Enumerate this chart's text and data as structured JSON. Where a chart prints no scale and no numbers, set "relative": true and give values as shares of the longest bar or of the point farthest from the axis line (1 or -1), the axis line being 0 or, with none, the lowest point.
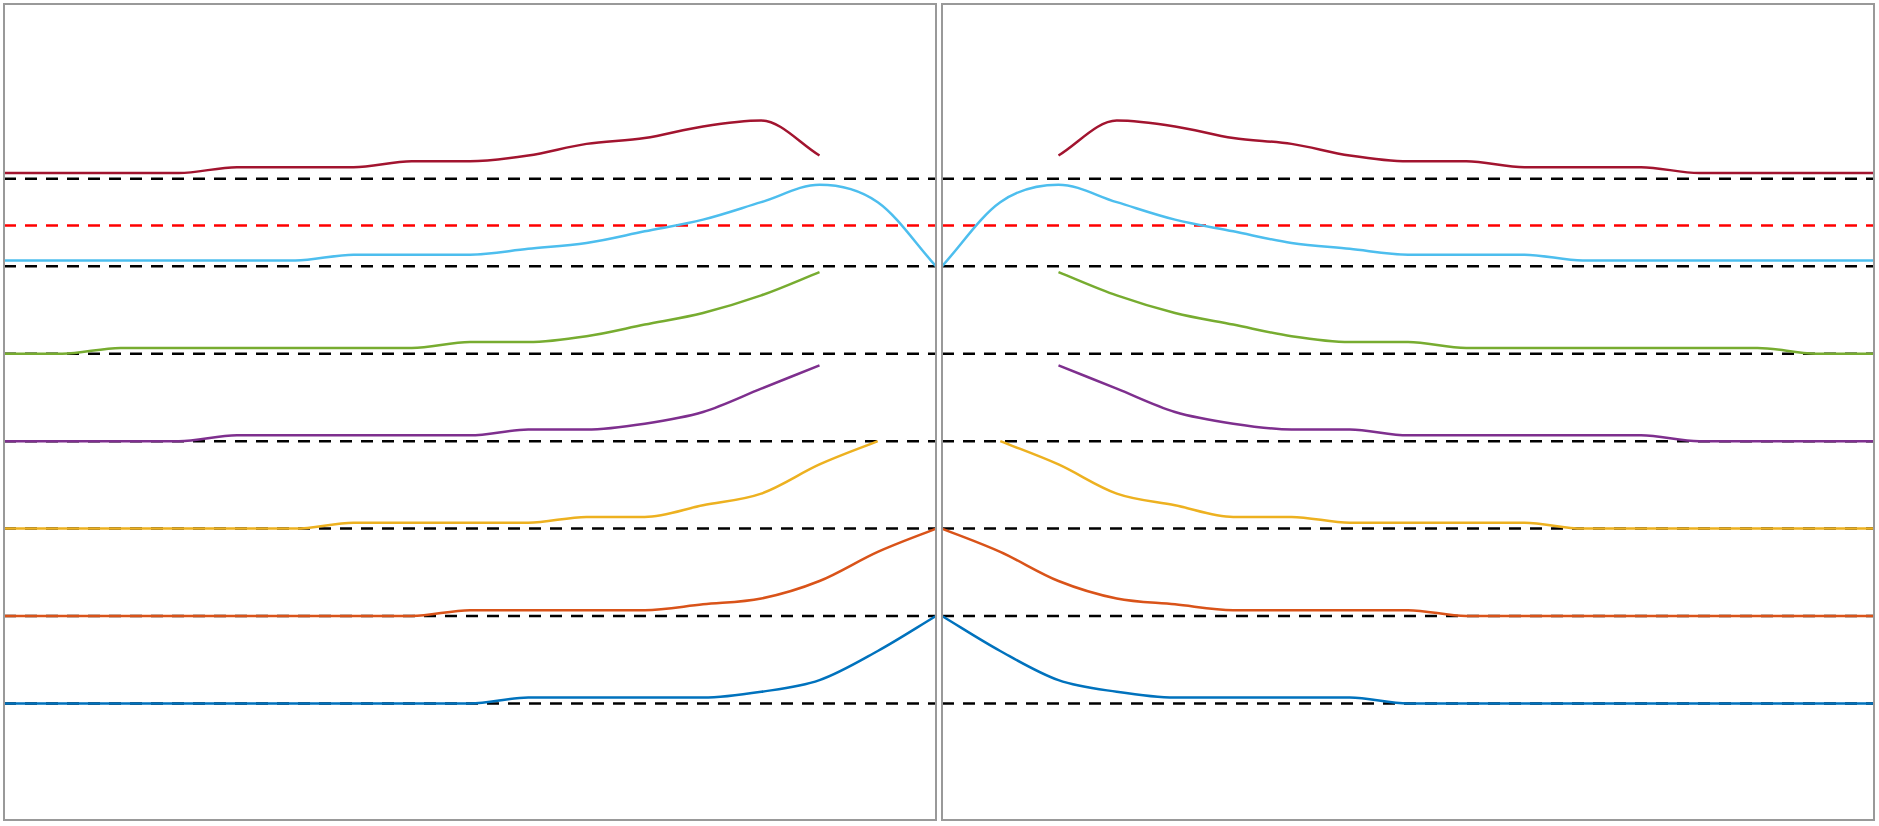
{
  "chart_data": [
    {
      "type": "line",
      "relative": true,
      "marker": "none",
      "line_style": "solid",
      "categories": [
        null,
        null,
        null,
        null,
        null,
        null,
        null,
        null,
        null,
        null,
        null,
        null,
        null,
        null,
        null,
        null,
        null
      ],
      "series": [
        {
          "color": "#0072bd",
          "values": [
            0,
            0,
            0,
            0,
            0,
            0,
            0,
            0,
            0,
            0.01,
            0.01,
            0.01,
            0.01,
            0.02,
            0.04,
            0.09,
            0.15
          ]
        },
        {
          "color": "#d95319",
          "values": [
            0.15,
            0.15,
            0.15,
            0.15,
            0.15,
            0.15,
            0.15,
            0.15,
            0.16,
            0.16,
            0.16,
            0.16,
            0.17,
            0.18,
            0.21,
            0.26,
            0.3
          ]
        },
        {
          "color": "#edb120",
          "values": [
            0.3,
            0.3,
            0.3,
            0.3,
            0.3,
            0.3,
            0.31,
            0.31,
            0.31,
            0.31,
            0.32,
            0.32,
            0.34,
            0.36,
            0.41,
            0.45,
            null
          ]
        },
        {
          "color": "#7e2f8e",
          "values": [
            0.45,
            0.45,
            0.45,
            0.45,
            0.46,
            0.46,
            0.46,
            0.46,
            0.46,
            0.47,
            0.47,
            0.48,
            0.5,
            0.54,
            0.58,
            null,
            null
          ]
        },
        {
          "color": "#77ac30",
          "values": [
            0.6,
            0.6,
            0.61,
            0.61,
            0.61,
            0.61,
            0.61,
            0.61,
            0.62,
            0.62,
            0.63,
            0.65,
            0.67,
            0.7,
            0.74,
            null,
            null
          ]
        },
        {
          "color": "#4dbeee",
          "values": [
            0.76,
            0.76,
            0.76,
            0.76,
            0.76,
            0.76,
            0.77,
            0.77,
            0.77,
            0.78,
            0.79,
            0.81,
            0.83,
            0.86,
            0.89,
            0.86,
            0.75
          ]
        },
        {
          "color": "#a2142f",
          "values": [
            0.91,
            0.91,
            0.91,
            0.91,
            0.92,
            0.92,
            0.92,
            0.93,
            0.93,
            0.94,
            0.96,
            0.97,
            0.99,
            1.0,
            0.94,
            null,
            null
          ]
        }
      ],
      "ref_lines": [
        {
          "axis": "y",
          "value": 0,
          "color": "#000000",
          "line_style": "dashed"
        },
        {
          "axis": "y",
          "value": 0.15,
          "color": "#000000",
          "line_style": "dashed"
        },
        {
          "axis": "y",
          "value": 0.3,
          "color": "#000000",
          "line_style": "dashed"
        },
        {
          "axis": "y",
          "value": 0.45,
          "color": "#000000",
          "line_style": "dashed"
        },
        {
          "axis": "y",
          "value": 0.6,
          "color": "#000000",
          "line_style": "dashed"
        },
        {
          "axis": "y",
          "value": 0.75,
          "color": "#000000",
          "line_style": "dashed"
        },
        {
          "axis": "y",
          "value": 0.9,
          "color": "#000000",
          "line_style": "dashed"
        },
        {
          "axis": "y",
          "value": 0.82,
          "color": "#ff0000",
          "line_style": "dashed"
        }
      ]
    },
    {
      "type": "line",
      "relative": true,
      "marker": "none",
      "line_style": "solid",
      "categories": [
        null,
        null,
        null,
        null,
        null,
        null,
        null,
        null,
        null,
        null,
        null,
        null,
        null,
        null,
        null,
        null,
        null
      ],
      "series": [
        {
          "color": "#0072bd",
          "values": [
            0.15,
            0.09,
            0.04,
            0.02,
            0.01,
            0.01,
            0.01,
            0.01,
            0,
            0,
            0,
            0,
            0,
            0,
            0,
            0,
            0
          ]
        },
        {
          "color": "#d95319",
          "values": [
            0.3,
            0.26,
            0.21,
            0.18,
            0.17,
            0.16,
            0.16,
            0.16,
            0.16,
            0.15,
            0.15,
            0.15,
            0.15,
            0.15,
            0.15,
            0.15,
            0.15
          ]
        },
        {
          "color": "#edb120",
          "values": [
            null,
            0.45,
            0.41,
            0.36,
            0.34,
            0.32,
            0.32,
            0.31,
            0.31,
            0.31,
            0.31,
            0.3,
            0.3,
            0.3,
            0.3,
            0.3,
            0.3
          ]
        },
        {
          "color": "#7e2f8e",
          "values": [
            null,
            null,
            0.58,
            0.54,
            0.5,
            0.48,
            0.47,
            0.47,
            0.46,
            0.46,
            0.46,
            0.46,
            0.46,
            0.45,
            0.45,
            0.45,
            0.45
          ]
        },
        {
          "color": "#77ac30",
          "values": [
            null,
            null,
            0.74,
            0.7,
            0.67,
            0.65,
            0.63,
            0.62,
            0.62,
            0.61,
            0.61,
            0.61,
            0.61,
            0.61,
            0.61,
            0.6,
            0.6
          ]
        },
        {
          "color": "#4dbeee",
          "values": [
            0.75,
            0.86,
            0.89,
            0.86,
            0.83,
            0.81,
            0.79,
            0.78,
            0.77,
            0.77,
            0.77,
            0.76,
            0.76,
            0.76,
            0.76,
            0.76,
            0.76
          ]
        },
        {
          "color": "#a2142f",
          "values": [
            null,
            null,
            0.94,
            1.0,
            0.99,
            0.97,
            0.96,
            0.94,
            0.93,
            0.93,
            0.92,
            0.92,
            0.92,
            0.91,
            0.91,
            0.91,
            0.91
          ]
        }
      ],
      "ref_lines": [
        {
          "axis": "y",
          "value": 0,
          "color": "#000000",
          "line_style": "dashed"
        },
        {
          "axis": "y",
          "value": 0.15,
          "color": "#000000",
          "line_style": "dashed"
        },
        {
          "axis": "y",
          "value": 0.3,
          "color": "#000000",
          "line_style": "dashed"
        },
        {
          "axis": "y",
          "value": 0.45,
          "color": "#000000",
          "line_style": "dashed"
        },
        {
          "axis": "y",
          "value": 0.6,
          "color": "#000000",
          "line_style": "dashed"
        },
        {
          "axis": "y",
          "value": 0.75,
          "color": "#000000",
          "line_style": "dashed"
        },
        {
          "axis": "y",
          "value": 0.9,
          "color": "#000000",
          "line_style": "dashed"
        },
        {
          "axis": "y",
          "value": 0.82,
          "color": "#ff0000",
          "line_style": "dashed"
        }
      ]
    }
  ]
}
